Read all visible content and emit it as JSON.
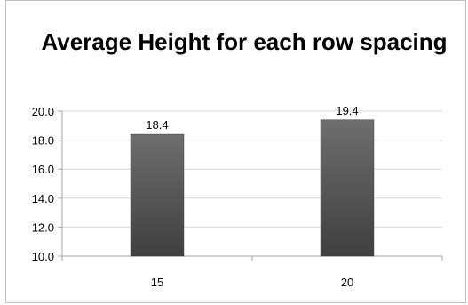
{
  "chart_data": {
    "type": "bar",
    "title": "Average Height for each row spacing",
    "categories": [
      "15",
      "20"
    ],
    "values": [
      18.4,
      19.4
    ],
    "data_labels": [
      "18.4",
      "19.4"
    ],
    "ylim": [
      10.0,
      20.0
    ],
    "yticks": [
      "10.0",
      "12.0",
      "14.0",
      "16.0",
      "18.0",
      "20.0"
    ],
    "xlabel": "",
    "ylabel": "",
    "grid": true,
    "legend": "none",
    "bar_color": "#595959"
  }
}
